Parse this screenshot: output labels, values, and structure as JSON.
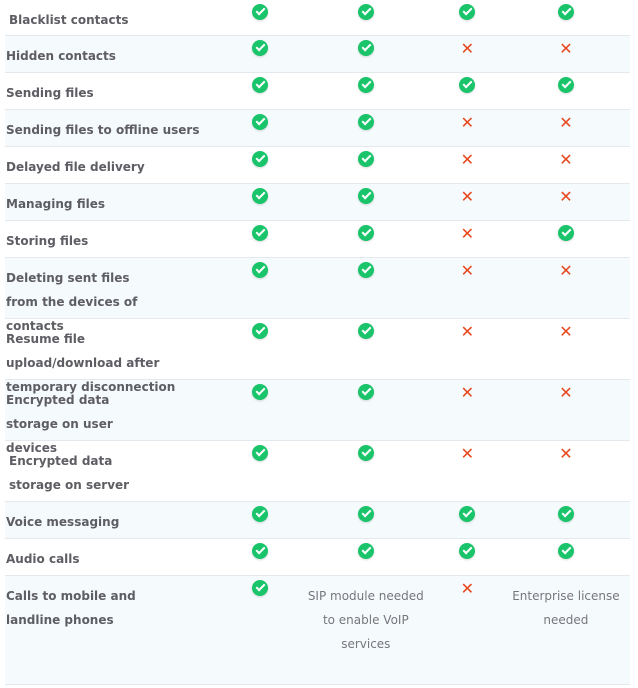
{
  "colors": {
    "check": "#19c46a",
    "cross": "#e8471c",
    "row_alt": "#f5fafd"
  },
  "rows": [
    {
      "feature": "Blacklist contacts",
      "values": [
        "check",
        "check",
        "check",
        "check"
      ]
    },
    {
      "feature": "Hidden contacts",
      "values": [
        "check",
        "check",
        "cross",
        "cross"
      ]
    },
    {
      "feature": "Sending files",
      "values": [
        "check",
        "check",
        "check",
        "check"
      ]
    },
    {
      "feature": "Sending files to offline users",
      "values": [
        "check",
        "check",
        "cross",
        "cross"
      ]
    },
    {
      "feature": "Delayed file delivery",
      "values": [
        "check",
        "check",
        "cross",
        "cross"
      ]
    },
    {
      "feature": "Managing files",
      "values": [
        "check",
        "check",
        "cross",
        "cross"
      ]
    },
    {
      "feature": "Storing files",
      "values": [
        "check",
        "check",
        "cross",
        "check"
      ]
    },
    {
      "feature": "Deleting sent files from the devices of contacts",
      "values": [
        "check",
        "check",
        "cross",
        "cross"
      ]
    },
    {
      "feature": "Resume file upload/download after temporary disconnection",
      "values": [
        "check",
        "check",
        "cross",
        "cross"
      ]
    },
    {
      "feature": "Encrypted data storage on user devices",
      "values": [
        "check",
        "check",
        "cross",
        "cross"
      ]
    },
    {
      "feature": "Encrypted data storage on server",
      "values": [
        "check",
        "check",
        "cross",
        "cross"
      ]
    },
    {
      "feature": "Voice messaging",
      "values": [
        "check",
        "check",
        "check",
        "check"
      ]
    },
    {
      "feature": "Audio calls",
      "values": [
        "check",
        "check",
        "check",
        "check"
      ]
    },
    {
      "feature": "Calls to mobile and landline phones",
      "values": [
        "check",
        "SIP module needed to enable VoIP services",
        "cross",
        "Enterprise license needed"
      ]
    }
  ]
}
